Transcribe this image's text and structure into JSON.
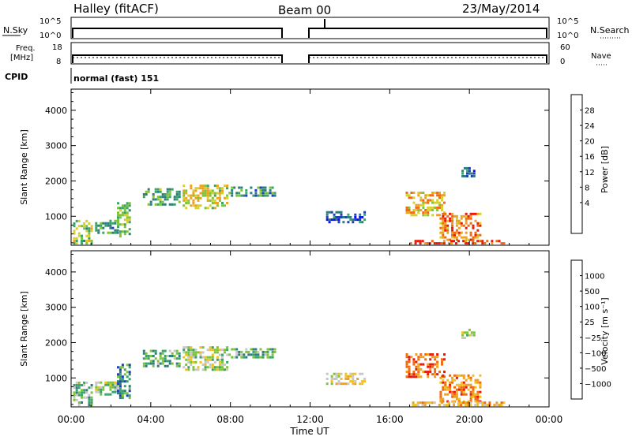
{
  "header": {
    "station": "Halley (fitACF)",
    "beam": "Beam 00",
    "date": "23/May/2014"
  },
  "summary_panels": {
    "nsky_label": "N.Sky",
    "nsearch_label": "N.Search",
    "count_ticks": [
      "10^5",
      "10^0"
    ],
    "freq_label_line1": "Freq.",
    "freq_label_line2": "[MHz]",
    "freq_ticks": [
      "18",
      "8"
    ],
    "nave_label": "Nave",
    "nave_ticks": [
      "60",
      "0"
    ],
    "cpid_label": "CPID",
    "cpid_value": "normal (fast) 151"
  },
  "chart_data": [
    {
      "type": "heatmap",
      "name": "power-panel",
      "ylabel": "Slant Range [km]",
      "yticks": [
        1000,
        2000,
        3000,
        4000
      ],
      "ylim": [
        180,
        4600
      ],
      "xlim_hours": [
        0,
        24
      ],
      "colorbar_label": "Power [dB]",
      "colorbar_ticks": [
        "28",
        "24",
        "20",
        "16",
        "12",
        "8",
        "4"
      ],
      "colorbar_colors": [
        "#0a10e8",
        "#1f3fb8",
        "#2e7d7a",
        "#3aa36a",
        "#7cc43a",
        "#d8d02a",
        "#f0a020",
        "#f06a10",
        "#e81a0a"
      ],
      "features": [
        {
          "t0": 0.1,
          "t1": 1.1,
          "r0": 200,
          "r1": 900,
          "level": 0.5
        },
        {
          "t0": 1.2,
          "t1": 2.4,
          "r0": 500,
          "r1": 900,
          "level": 0.35
        },
        {
          "t0": 2.3,
          "t1": 3.0,
          "r0": 400,
          "r1": 1400,
          "level": 0.45
        },
        {
          "t0": 3.6,
          "t1": 5.5,
          "r0": 1300,
          "r1": 1800,
          "level": 0.4
        },
        {
          "t0": 5.6,
          "t1": 7.9,
          "r0": 1200,
          "r1": 1900,
          "level": 0.6
        },
        {
          "t0": 7.9,
          "t1": 10.3,
          "r0": 1550,
          "r1": 1850,
          "level": 0.35
        },
        {
          "t0": 12.8,
          "t1": 14.8,
          "r0": 800,
          "r1": 1150,
          "level": 0.2
        },
        {
          "t0": 16.8,
          "t1": 18.8,
          "r0": 1000,
          "r1": 1700,
          "level": 0.7
        },
        {
          "t0": 18.5,
          "t1": 20.6,
          "r0": 300,
          "r1": 1100,
          "level": 0.8
        },
        {
          "t0": 17.0,
          "t1": 21.8,
          "r0": 200,
          "r1": 330,
          "level": 0.9
        },
        {
          "t0": 19.6,
          "t1": 20.3,
          "r0": 2100,
          "r1": 2400,
          "level": 0.2
        }
      ]
    },
    {
      "type": "heatmap",
      "name": "velocity-panel",
      "ylabel": "Slant Range [km]",
      "xlabel": "Time UT",
      "xticks": [
        "00:00",
        "04:00",
        "08:00",
        "12:00",
        "16:00",
        "20:00",
        "00:00"
      ],
      "yticks": [
        1000,
        2000,
        3000,
        4000
      ],
      "ylim": [
        180,
        4600
      ],
      "xlim_hours": [
        0,
        24
      ],
      "colorbar_label": "Velocity [m s⁻¹]",
      "colorbar_ticks": [
        "1000",
        "500",
        "100",
        "25",
        "−25",
        "−100",
        "−500",
        "−1000"
      ],
      "colorbar_colors": [
        "#1f3fb8",
        "#2e7d7a",
        "#3aa36a",
        "#7cc43a",
        "#c8c8c8",
        "#f0c020",
        "#f0a020",
        "#f06a10",
        "#e81a0a"
      ],
      "features": [
        {
          "t0": 0.1,
          "t1": 1.1,
          "r0": 200,
          "r1": 900,
          "level": 0.35
        },
        {
          "t0": 1.2,
          "t1": 2.4,
          "r0": 500,
          "r1": 900,
          "level": 0.45
        },
        {
          "t0": 2.3,
          "t1": 3.0,
          "r0": 400,
          "r1": 1400,
          "level": 0.2
        },
        {
          "t0": 3.6,
          "t1": 5.5,
          "r0": 1300,
          "r1": 1800,
          "level": 0.3
        },
        {
          "t0": 5.6,
          "t1": 7.9,
          "r0": 1200,
          "r1": 1900,
          "level": 0.45
        },
        {
          "t0": 7.9,
          "t1": 10.3,
          "r0": 1550,
          "r1": 1850,
          "level": 0.3
        },
        {
          "t0": 12.8,
          "t1": 14.8,
          "r0": 800,
          "r1": 1150,
          "level": 0.6
        },
        {
          "t0": 16.8,
          "t1": 18.8,
          "r0": 1000,
          "r1": 1700,
          "level": 0.85
        },
        {
          "t0": 18.5,
          "t1": 20.6,
          "r0": 300,
          "r1": 1100,
          "level": 0.75
        },
        {
          "t0": 17.0,
          "t1": 21.8,
          "r0": 200,
          "r1": 330,
          "level": 0.65
        },
        {
          "t0": 19.6,
          "t1": 20.3,
          "r0": 2100,
          "r1": 2400,
          "level": 0.5
        }
      ]
    }
  ]
}
